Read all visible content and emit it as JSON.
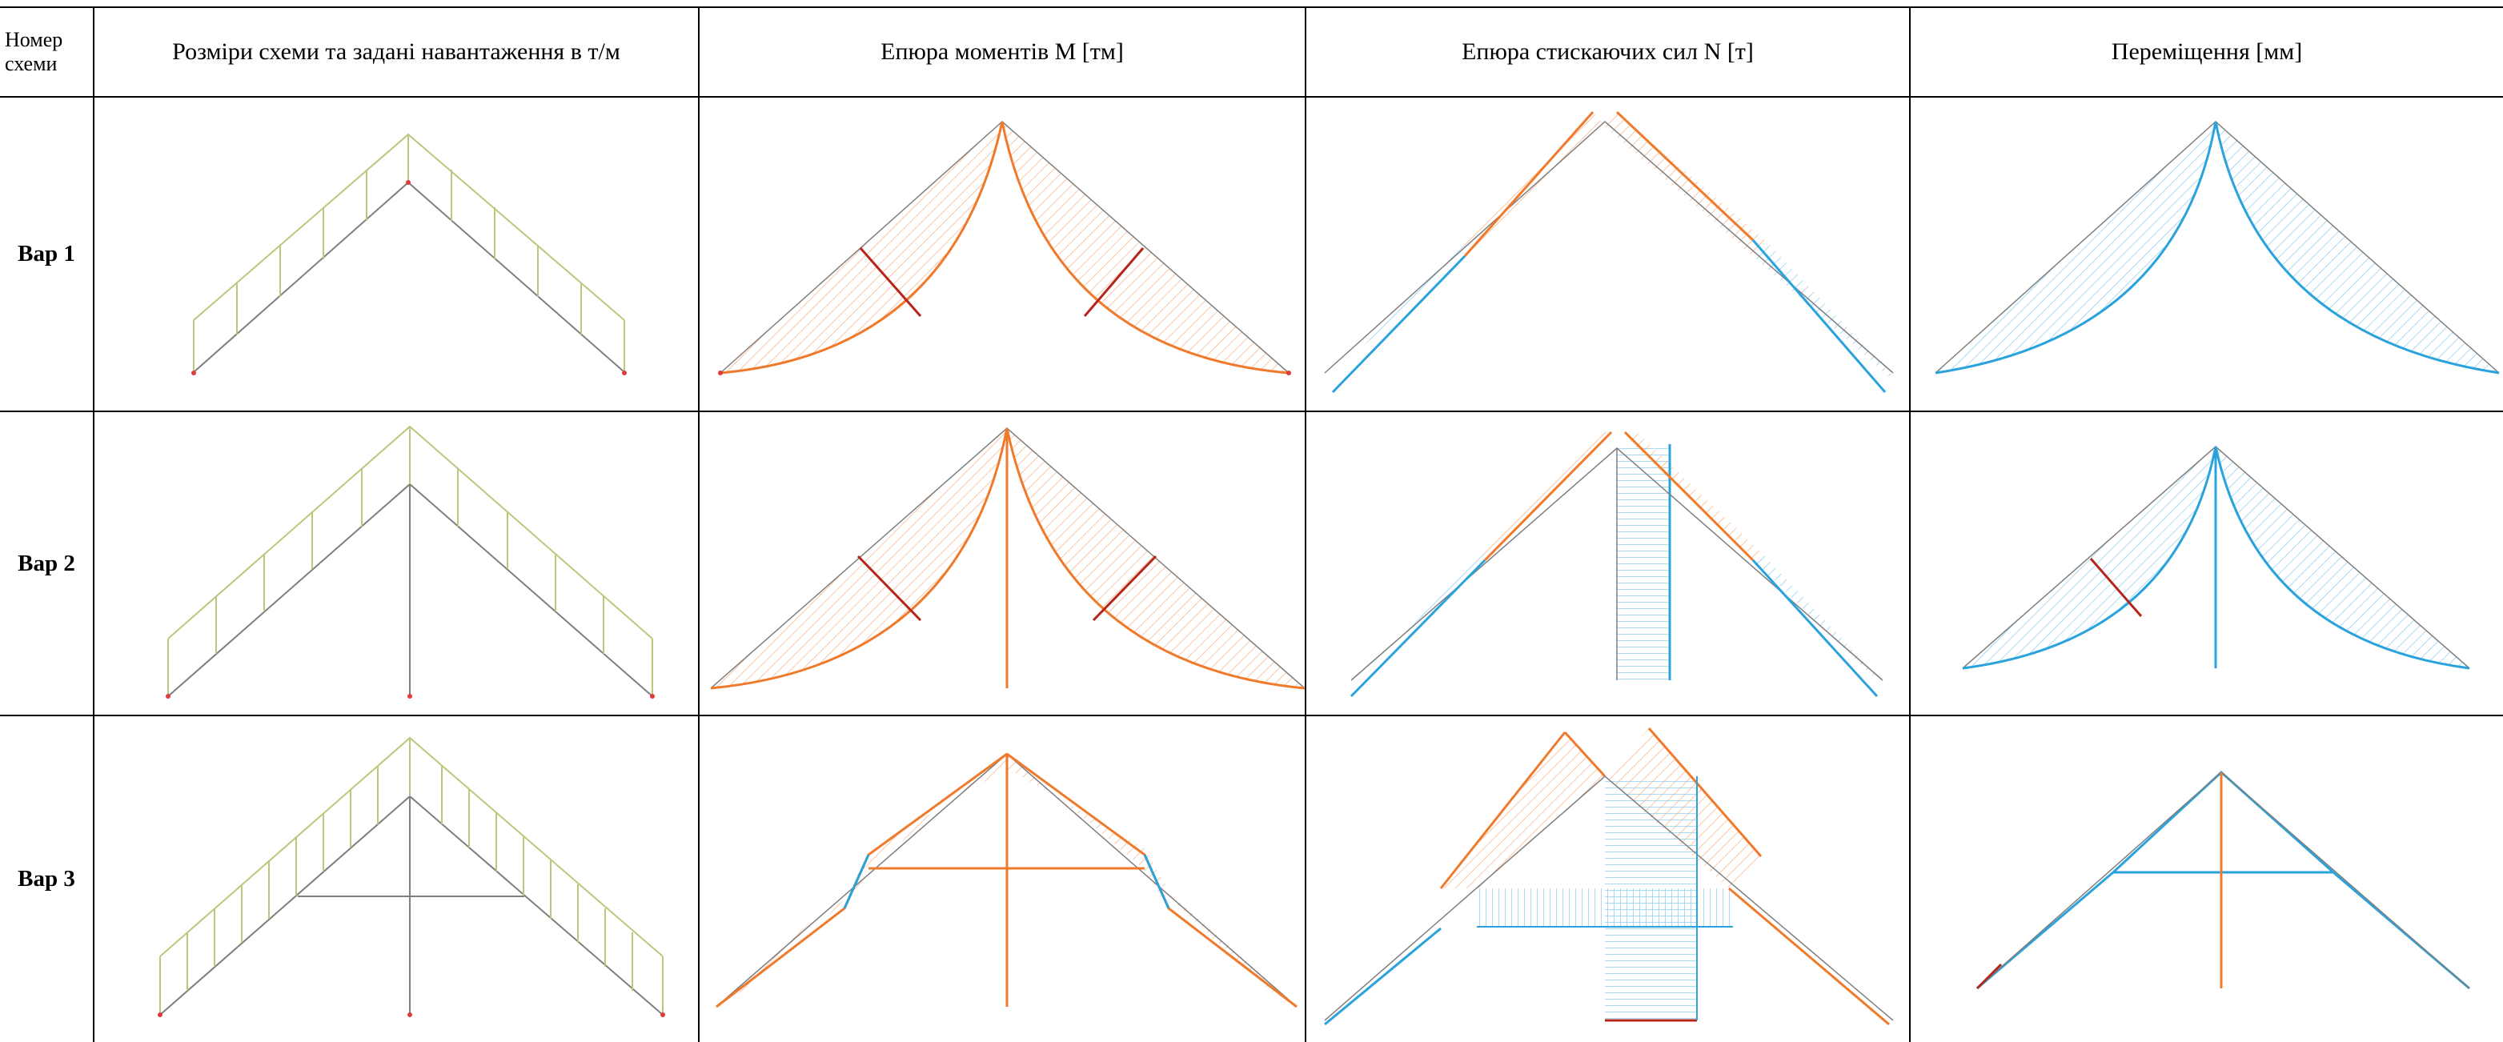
{
  "table": {
    "headers": [
      {
        "line1": "Номер",
        "line2": "схеми"
      },
      {
        "text": "Розміри схеми та задані навантаження в т/м"
      },
      {
        "text": "Епюра моментів M [тм]"
      },
      {
        "text": "Епюра стискаючих сил N [т]"
      },
      {
        "text": "Переміщення [мм]"
      }
    ],
    "rows": [
      {
        "label": "Вар 1"
      },
      {
        "label": "Вар 2"
      },
      {
        "label": "Вар 3"
      }
    ]
  },
  "colors": {
    "load": "#b9c97c",
    "frame": "#7f7f7f",
    "moment": "#f07a2c",
    "moment_fill": "#f7b48a",
    "moment_key": "#b5251c",
    "axial": "#2aa3dc",
    "axial_fill": "#8fcdef",
    "support": "#e23b3b"
  }
}
